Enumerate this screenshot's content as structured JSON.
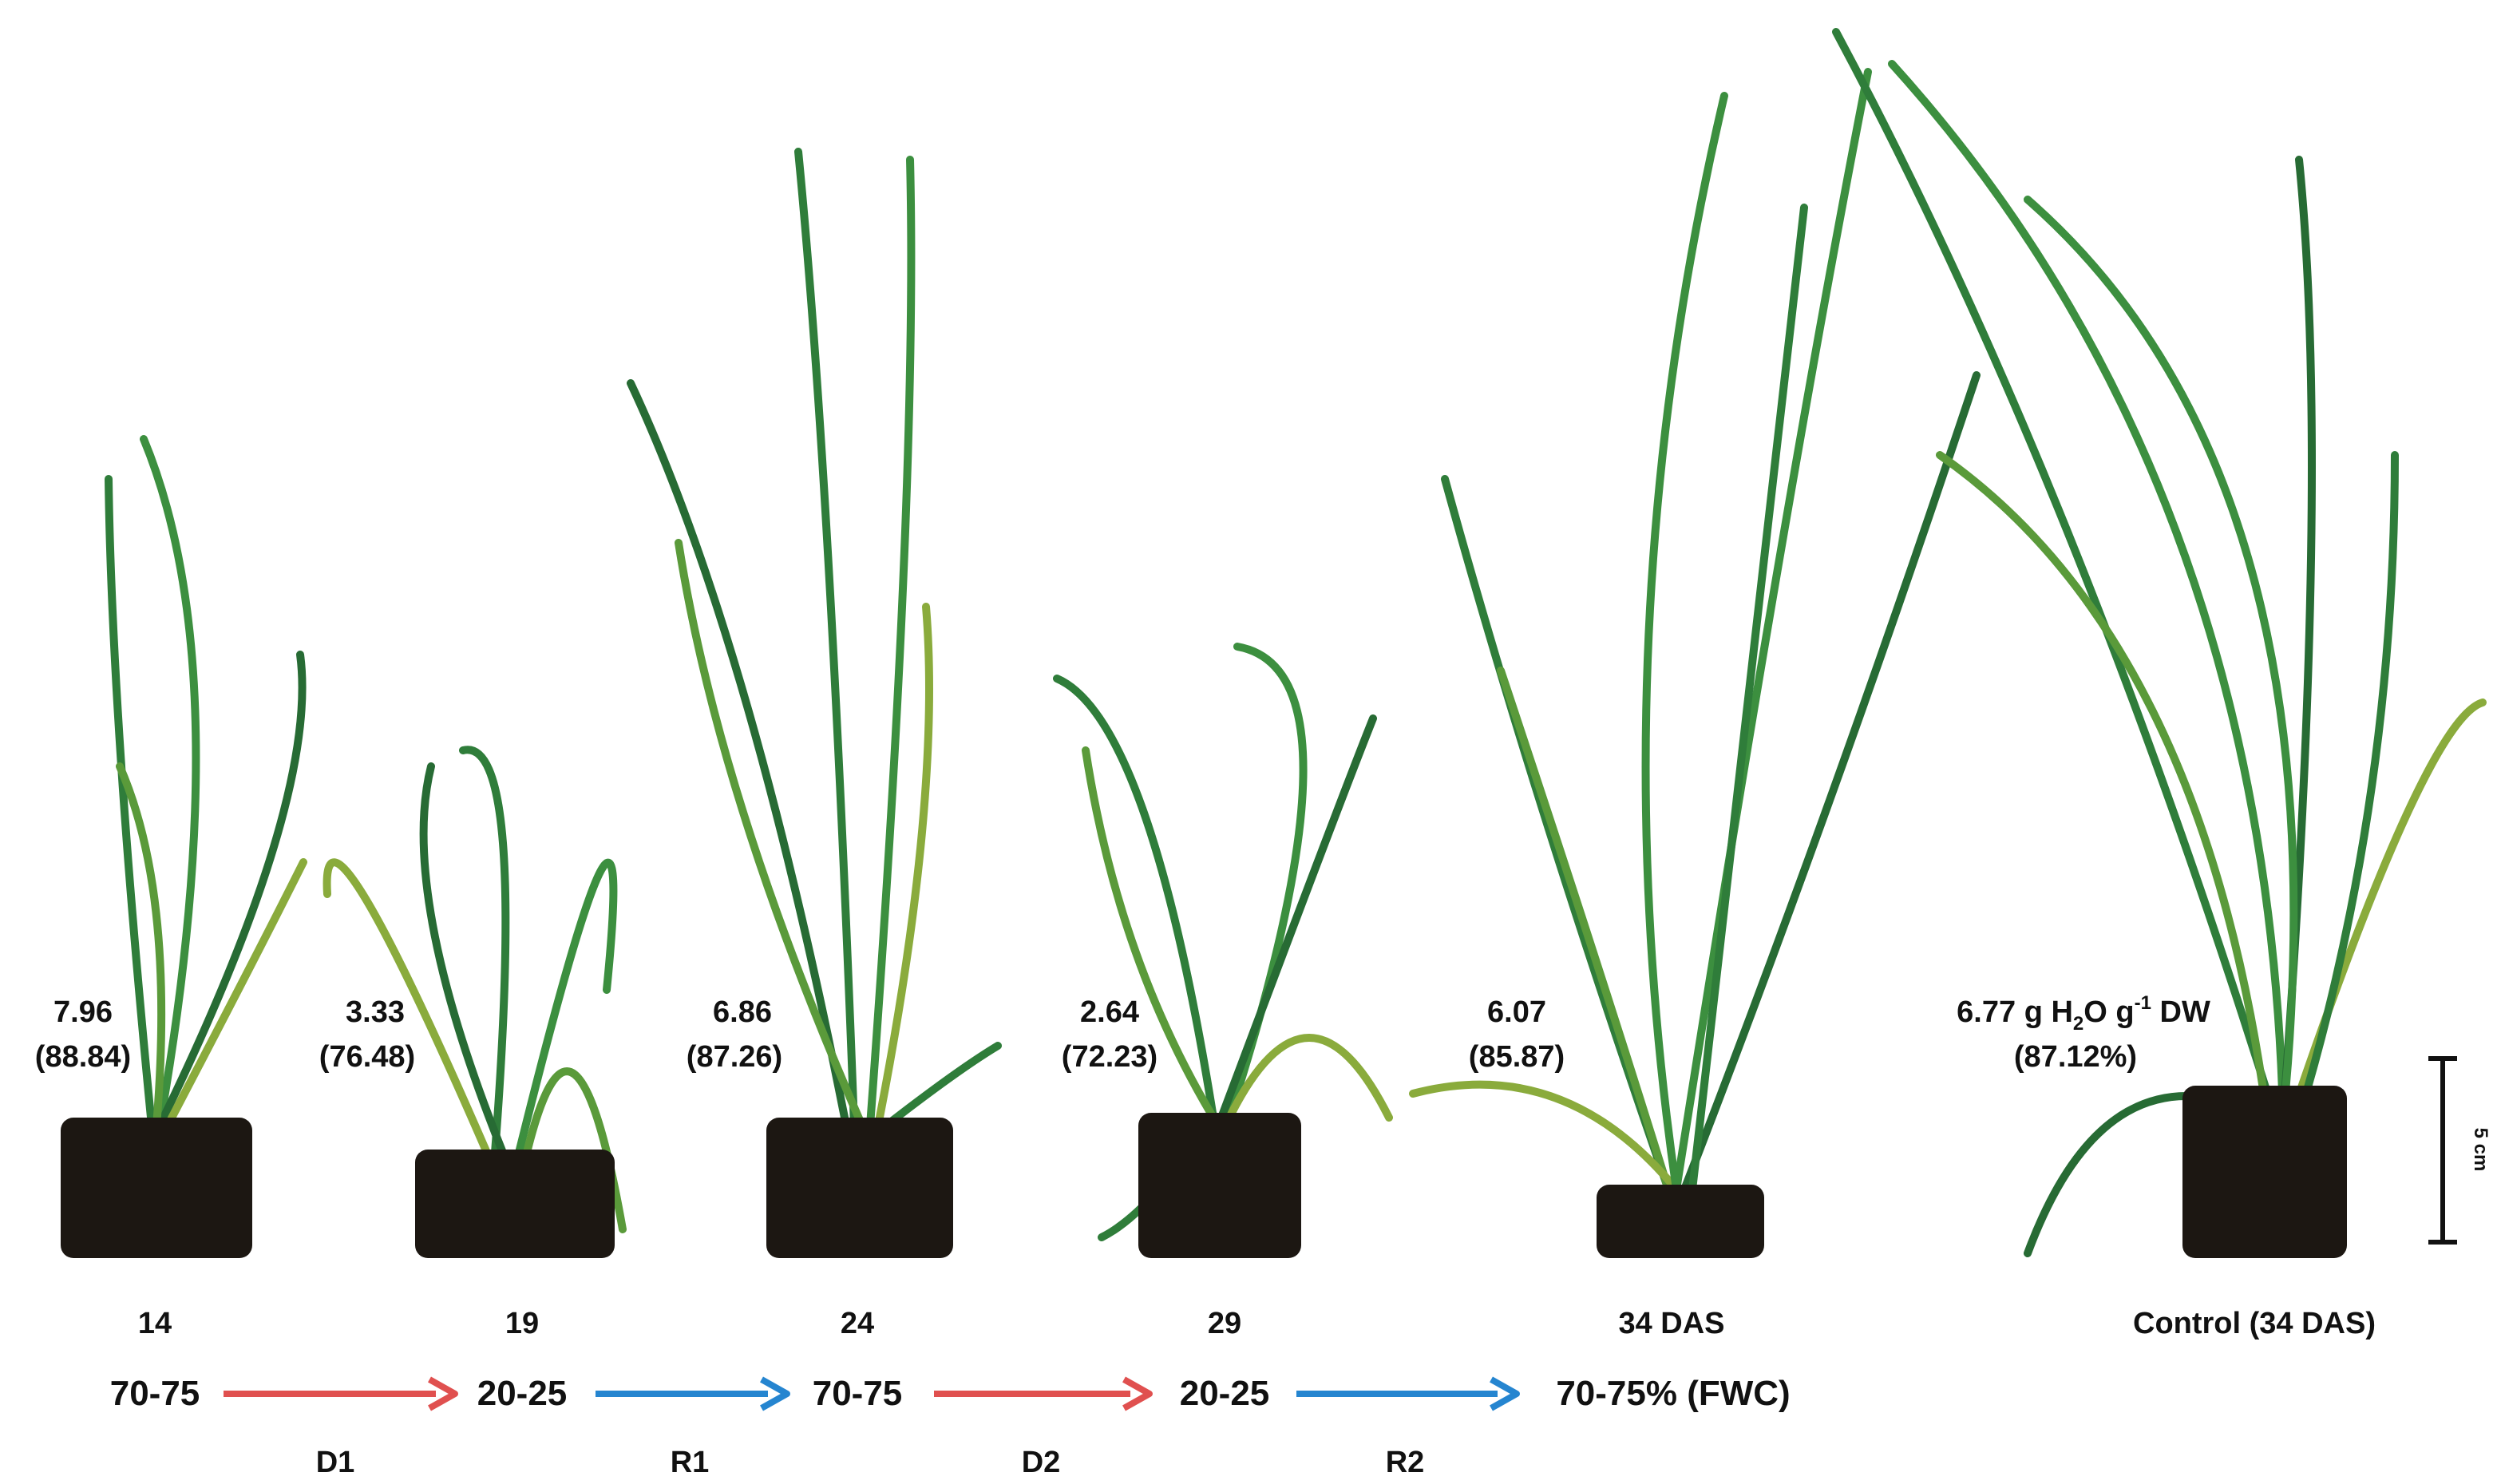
{
  "plants": [
    {
      "water": "7.96",
      "relative": "(88.84)",
      "day": "14"
    },
    {
      "water": "3.33",
      "relative": "(76.48)",
      "day": "19"
    },
    {
      "water": "6.86",
      "relative": "(87.26)",
      "day": "24"
    },
    {
      "water": "2.64",
      "relative": "(72.23)",
      "day": "29"
    },
    {
      "water": "6.07",
      "relative": "(85.87)",
      "day": "34 DAS"
    }
  ],
  "control": {
    "water": [
      "6.77 g H",
      "2",
      "O g",
      "-1",
      " DW"
    ],
    "relative": "(87.12%)",
    "day": "Control (34 DAS)"
  },
  "fwc": [
    "70-75",
    "20-25",
    "70-75",
    "20-25",
    "70-75% (FWC)"
  ],
  "transitions": [
    {
      "label": "D1",
      "color": "#e0504f"
    },
    {
      "label": "R1",
      "color": "#2585d0"
    },
    {
      "label": "D2",
      "color": "#e0504f"
    },
    {
      "label": "R2",
      "color": "#2585d0"
    }
  ],
  "scale_bar": "5 cm"
}
